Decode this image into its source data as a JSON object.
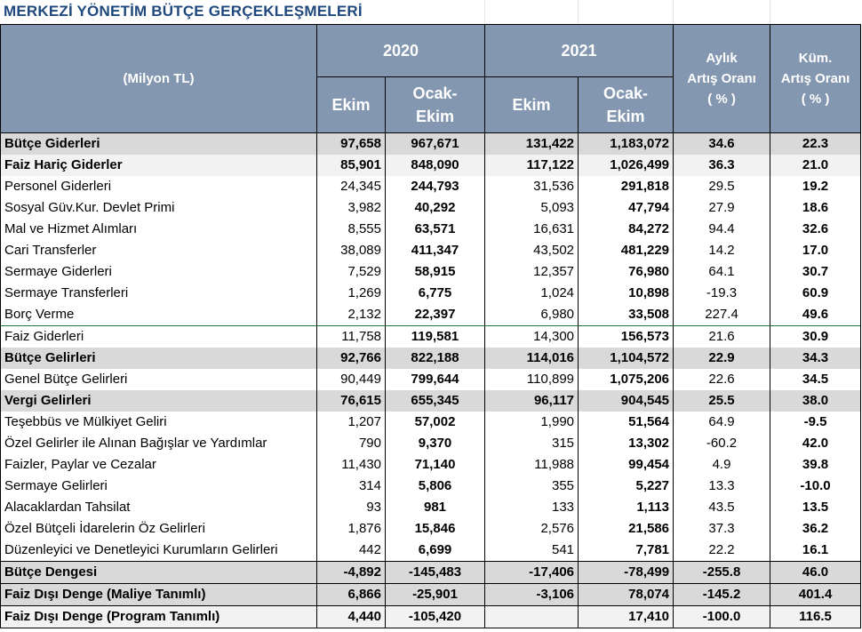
{
  "title": "MERKEZİ YÖNETİM BÜTÇE GERÇEKLEŞMELERİ",
  "header": {
    "unit": "(Milyon TL)",
    "year1": "2020",
    "year2": "2021",
    "ekim": "Ekim",
    "ocak_ekim_1": "Ocak-",
    "ocak_ekim_2": "Ekim",
    "aylik_1": "Aylık",
    "aylik_2": "Artış Oranı",
    "aylik_3": "( % )",
    "kum_1": "Küm.",
    "kum_2": "Artış Oranı",
    "kum_3": "( % )"
  },
  "rows": [
    {
      "label": "Bütçe Giderleri",
      "e20": "97,658",
      "oe20": "967,671",
      "e21": "131,422",
      "oe21": "1,183,072",
      "aylik": "34.6",
      "kum": "22.3"
    },
    {
      "label": "Faiz Hariç Giderler",
      "e20": "85,901",
      "oe20": "848,090",
      "e21": "117,122",
      "oe21": "1,026,499",
      "aylik": "36.3",
      "kum": "21.0"
    },
    {
      "label": "Personel Giderleri",
      "e20": "24,345",
      "oe20": "244,793",
      "e21": "31,536",
      "oe21": "291,818",
      "aylik": "29.5",
      "kum": "19.2"
    },
    {
      "label": "Sosyal Güv.Kur. Devlet Primi",
      "e20": "3,982",
      "oe20": "40,292",
      "e21": "5,093",
      "oe21": "47,794",
      "aylik": "27.9",
      "kum": "18.6"
    },
    {
      "label": "Mal ve Hizmet Alımları",
      "e20": "8,555",
      "oe20": "63,571",
      "e21": "16,631",
      "oe21": "84,272",
      "aylik": "94.4",
      "kum": "32.6"
    },
    {
      "label": "Cari Transferler",
      "e20": "38,089",
      "oe20": "411,347",
      "e21": "43,502",
      "oe21": "481,229",
      "aylik": "14.2",
      "kum": "17.0"
    },
    {
      "label": "Sermaye Giderleri",
      "e20": "7,529",
      "oe20": "58,915",
      "e21": "12,357",
      "oe21": "76,980",
      "aylik": "64.1",
      "kum": "30.7"
    },
    {
      "label": "Sermaye Transferleri",
      "e20": "1,269",
      "oe20": "6,775",
      "e21": "1,024",
      "oe21": "10,898",
      "aylik": "-19.3",
      "kum": "60.9"
    },
    {
      "label": "Borç Verme",
      "e20": "2,132",
      "oe20": "22,397",
      "e21": "6,980",
      "oe21": "33,508",
      "aylik": "227.4",
      "kum": "49.6"
    },
    {
      "label": "Faiz Giderleri",
      "e20": "11,758",
      "oe20": "119,581",
      "e21": "14,300",
      "oe21": "156,573",
      "aylik": "21.6",
      "kum": "30.9"
    },
    {
      "label": "Bütçe Gelirleri",
      "e20": "92,766",
      "oe20": "822,188",
      "e21": "114,016",
      "oe21": "1,104,572",
      "aylik": "22.9",
      "kum": "34.3"
    },
    {
      "label": "Genel Bütçe Gelirleri",
      "e20": "90,449",
      "oe20": "799,644",
      "e21": "110,899",
      "oe21": "1,075,206",
      "aylik": "22.6",
      "kum": "34.5"
    },
    {
      "label": "Vergi Gelirleri",
      "e20": "76,615",
      "oe20": "655,345",
      "e21": "96,117",
      "oe21": "904,545",
      "aylik": "25.5",
      "kum": "38.0"
    },
    {
      "label": "Teşebbüs ve Mülkiyet Geliri",
      "e20": "1,207",
      "oe20": "57,002",
      "e21": "1,990",
      "oe21": "51,564",
      "aylik": "64.9",
      "kum": "-9.5"
    },
    {
      "label": "Özel Gelirler ile Alınan Bağışlar ve Yardımlar",
      "e20": "790",
      "oe20": "9,370",
      "e21": "315",
      "oe21": "13,302",
      "aylik": "-60.2",
      "kum": "42.0"
    },
    {
      "label": "Faizler, Paylar ve Cezalar",
      "e20": "11,430",
      "oe20": "71,140",
      "e21": "11,988",
      "oe21": "99,454",
      "aylik": "4.9",
      "kum": "39.8"
    },
    {
      "label": "Sermaye Gelirleri",
      "e20": "314",
      "oe20": "5,806",
      "e21": "355",
      "oe21": "5,227",
      "aylik": "13.3",
      "kum": "-10.0"
    },
    {
      "label": "Alacaklardan Tahsilat",
      "e20": "93",
      "oe20": "981",
      "e21": "133",
      "oe21": "1,113",
      "aylik": "43.5",
      "kum": "13.5"
    },
    {
      "label": "Özel Bütçeli İdarelerin Öz  Gelirleri",
      "e20": "1,876",
      "oe20": "15,846",
      "e21": "2,576",
      "oe21": "21,586",
      "aylik": "37.3",
      "kum": "36.2"
    },
    {
      "label": "Düzenleyici ve Denetleyici Kurumların Gelirleri",
      "e20": "442",
      "oe20": "6,699",
      "e21": "541",
      "oe21": "7,781",
      "aylik": "22.2",
      "kum": "16.1"
    },
    {
      "label": "Bütçe Dengesi",
      "e20": "-4,892",
      "oe20": "-145,483",
      "e21": "-17,406",
      "oe21": "-78,499",
      "aylik": "-255.8",
      "kum": "46.0"
    },
    {
      "label": "Faiz Dışı Denge (Maliye Tanımlı)",
      "e20": "6,866",
      "oe20": "-25,901",
      "e21": "-3,106",
      "oe21": "78,074",
      "aylik": "-145.2",
      "kum": "401.4"
    },
    {
      "label": "Faiz Dışı Denge (Program Tanımlı)",
      "e20": "4,440",
      "oe20": "-105,420",
      "e21": "",
      "oe21": "17,410",
      "aylik": "-100.0",
      "kum": "116.5"
    }
  ]
}
